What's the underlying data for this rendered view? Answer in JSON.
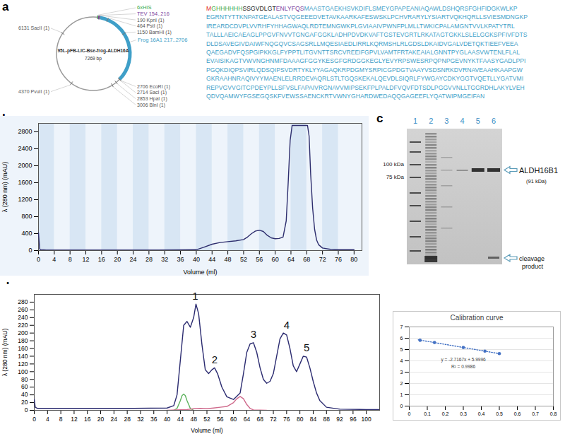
{
  "panel_labels": [
    "a",
    "b",
    "c",
    "d"
  ],
  "plasmid": {
    "name": "95L-pFB-LIC-Bse-frog-ALDH16A",
    "length": 7269,
    "length_label": "7269 bp",
    "features": [
      {
        "text": "6xHIS",
        "start": 124,
        "end": 153,
        "color": "#3daa4a"
      },
      {
        "text": "TEV 154..216",
        "start": 154,
        "end": 216,
        "color": "#7b3f9e"
      },
      {
        "text": "Frog 16A1 217..2706",
        "start": 217,
        "end": 2706,
        "color": "#3f9fc8"
      }
    ],
    "sites": [
      {
        "text": "190 KpnI (1)",
        "position": 190
      },
      {
        "text": "464 PstI (1)",
        "position": 464
      },
      {
        "text": "1150 BamHI (1)",
        "position": 1150
      },
      {
        "text": "2706 EcoRI (1)",
        "position": 2706
      },
      {
        "text": "2714 SacI (1)",
        "position": 2714
      },
      {
        "text": "2853 HpaI (1)",
        "position": 2853
      },
      {
        "text": "3006 BlnI (1)",
        "position": 3006
      },
      {
        "text": "4370 PvuII (1)",
        "position": 4370
      },
      {
        "text": "6131 SacII (1)",
        "position": 6131
      }
    ]
  },
  "sequence": {
    "lines": [
      [
        {
          "text": "M",
          "color": "#e0262b"
        },
        {
          "text": "GHHHHHH",
          "color": "#3daa4a"
        },
        {
          "text": "SSGVDLGT",
          "color": "#111111"
        },
        {
          "text": "ENLYFQS",
          "color": "#7b3f9e"
        },
        {
          "text": "MAASTGAEKHSVKDIFLSMEYGPAPEANIAQAWLDSHQRSFGHFIDGKWLKP",
          "color": "#3f9fc8"
        }
      ],
      [
        {
          "text": "EGRNTYTTKNPATGEALASTVQGEEEDVETAVKAARKAFESWSKLPCHVRARYLYSIARTVQKHQRLLSVIESMDNGKP",
          "color": "#3f9fc8"
        }
      ],
      [
        {
          "text": "IREARDCDVPLVVRHFYHHAGWAQLRDTEMNGWKPLGVIAAIVPWNFPLMLLTWKICPALAMGNTVVLKPATYTRL",
          "color": "#3f9fc8"
        }
      ],
      [
        {
          "text": "TALLLAEICAEAGLPPGVFNVVTGNGAFGGKLADHPDVDKVAFTGSTEVGRTLRKATAGTGKKLSLELGGKSPFIVFDTS",
          "color": "#3f9fc8"
        }
      ],
      [
        {
          "text": "DLDSAVEGIVDAIWFNQGQVCSAGSRLLMQESIAEDLIRRLKQRMSHLRLGDSLDKAIDVGALVDETQKTIEEFVEEA",
          "color": "#3f9fc8"
        }
      ],
      [
        {
          "text": "QAEGADVFQSPGIPKKGLFYPPTLITGVNTTSRCVREEIFGPVLVAMTFRTAKEAIALGNNTPYGLAASVWTENLFLAL",
          "color": "#3f9fc8"
        }
      ],
      [
        {
          "text": "EVAISIKAGTVWVNGHNMFDAAAGFGGYKESGFGRDGGKEGLYEVYRPSWESRPQPNPGEVNYKTFAASYGADLPPI",
          "color": "#3f9fc8"
        }
      ],
      [
        {
          "text": "PGQKDIQPSVIRLQDSQIPSVDRTYKLYYAGAQKRPDGMYSRPICGPDGTVAAYVSDSNRKDVRNAVEAAHKAAPGW",
          "color": "#3f9fc8"
        }
      ],
      [
        {
          "text": "GKRAAHNRAQIVYYMAENLELRRDEVAQRLSTLTGQSKEKALQEVDLSIQRLFYWGAYCDKYGGTVQETLLYGATVMI",
          "color": "#3f9fc8"
        }
      ],
      [
        {
          "text": "REPVGVVGITCPDEYPLLSFVSLFAPAIVRGNAVVMIPSEKFPLPALDFVQVFDTSDLPGGVVNLLTGGRDHLAKYLVEH",
          "color": "#3f9fc8"
        }
      ],
      [
        {
          "text": "QDVQAMWYFGSEGQSKFVEWSSAENCKRTVWNYGHARDWEDAQQGAGEEFLYQATWIPMGEIFAN",
          "color": "#3f9fc8"
        }
      ]
    ]
  },
  "gel": {
    "lanes": [
      "1",
      "2",
      "3",
      "4",
      "5",
      "6"
    ],
    "markers": [
      "100 kDa",
      "75 kDa"
    ],
    "band_label": [
      "ALDH16B1",
      "(91 kDa)"
    ],
    "cleavage_label": [
      "cleavage",
      "product"
    ]
  },
  "chart_data": [
    {
      "type": "line",
      "x_label": "Volume (ml)",
      "y_label": "λ (280 nm) (mAU)",
      "xlim": [
        0,
        82
      ],
      "xticks": [
        0,
        4,
        8,
        12,
        16,
        20,
        24,
        28,
        32,
        36,
        40,
        44,
        48,
        52,
        56,
        60,
        64,
        68,
        72,
        76,
        80
      ],
      "ylim": [
        0,
        3000
      ],
      "yticks": [
        0,
        400,
        800,
        1200,
        1600,
        2000,
        2400,
        2800
      ],
      "grid": false,
      "series": [
        {
          "color": "#2e2e6e",
          "x": [
            0,
            0.3,
            0.6,
            2,
            10,
            20,
            30,
            40,
            42,
            44,
            46,
            48,
            50,
            52,
            53,
            54,
            55,
            56,
            57,
            58,
            59,
            60,
            61,
            62,
            62.8,
            63.3,
            63.8,
            64.3,
            68.2,
            68.6,
            69,
            69.5,
            70,
            70.5,
            71,
            72,
            74,
            76,
            80
          ],
          "values": [
            420,
            40,
            20,
            15,
            15,
            15,
            15,
            20,
            80,
            150,
            190,
            210,
            230,
            260,
            320,
            400,
            460,
            480,
            450,
            360,
            300,
            280,
            285,
            320,
            700,
            1600,
            2600,
            2950,
            2950,
            2700,
            1800,
            1000,
            500,
            250,
            140,
            60,
            30,
            20,
            20
          ]
        }
      ]
    },
    {
      "type": "line",
      "x_label": "Volume (ml)",
      "y_label": "λ (280 nm) (mAU)",
      "xlim": [
        0,
        104
      ],
      "xticks": [
        0,
        4,
        8,
        12,
        16,
        20,
        24,
        28,
        32,
        36,
        40,
        44,
        48,
        52,
        56,
        60,
        64,
        68,
        72,
        76,
        80,
        84,
        88,
        92,
        96,
        100
      ],
      "ylim": [
        0,
        300
      ],
      "yticks": [
        0,
        20,
        40,
        60,
        80,
        100,
        120,
        140,
        160,
        180,
        200,
        220,
        240,
        260,
        280
      ],
      "grid": false,
      "series": [
        {
          "color": "#2b2b70",
          "x": [
            0,
            0.3,
            1,
            10,
            20,
            30,
            40,
            42,
            43,
            44,
            45,
            46,
            47,
            48,
            48.7,
            49.5,
            50.5,
            51.5,
            52.5,
            53.5,
            54.3,
            55.2,
            56.5,
            58,
            60,
            62,
            63,
            64,
            65,
            66,
            67,
            68,
            69,
            70,
            71,
            72,
            73,
            74,
            75,
            76,
            77,
            78,
            79,
            80,
            81,
            82,
            83,
            84,
            85,
            86,
            88,
            92,
            100,
            104
          ],
          "values": [
            28,
            8,
            5,
            5,
            5,
            5,
            6,
            12,
            40,
            130,
            220,
            230,
            215,
            240,
            275,
            250,
            170,
            105,
            95,
            105,
            110,
            95,
            60,
            35,
            28,
            45,
            95,
            150,
            172,
            175,
            150,
            110,
            80,
            70,
            75,
            95,
            140,
            185,
            200,
            195,
            160,
            115,
            100,
            120,
            140,
            138,
            110,
            75,
            45,
            25,
            8,
            3,
            2,
            2
          ]
        },
        {
          "color": "#5fb35f",
          "x": [
            42,
            43,
            44,
            44.5,
            45,
            45.5,
            46,
            47,
            48
          ],
          "values": [
            0,
            5,
            25,
            38,
            42,
            38,
            25,
            5,
            0
          ]
        },
        {
          "color": "#cf6a8c",
          "x": [
            40,
            46,
            48,
            50,
            52,
            54,
            56,
            58,
            60,
            61,
            62,
            63,
            64,
            65,
            66,
            70
          ],
          "values": [
            0,
            2,
            4,
            5,
            4,
            6,
            8,
            10,
            20,
            30,
            36,
            30,
            15,
            5,
            1,
            0
          ]
        }
      ],
      "annotations": [
        {
          "text": "1",
          "x": 48.5,
          "y": 285
        },
        {
          "text": "2",
          "x": 54.3,
          "y": 120
        },
        {
          "text": "3",
          "x": 66,
          "y": 185
        },
        {
          "text": "4",
          "x": 76,
          "y": 210
        },
        {
          "text": "5",
          "x": 82,
          "y": 150
        }
      ]
    },
    {
      "type": "scatter",
      "title": "Calibration curve",
      "xlim": [
        0,
        0.8
      ],
      "xticks": [
        0,
        0.1,
        0.2,
        0.3,
        0.4,
        0.5,
        0.6,
        0.7,
        0.8
      ],
      "ylim": [
        0,
        7
      ],
      "yticks": [
        0,
        1,
        2,
        3,
        4,
        5,
        6,
        7
      ],
      "grid": true,
      "series": [
        {
          "type": "line",
          "line_style": "dotted",
          "color": "#4472c4",
          "x": [
            0.05,
            0.5
          ],
          "values": [
            5.86,
            4.64
          ]
        },
        {
          "type": "scatter",
          "marker": "circle",
          "color": "#4472c4",
          "x": [
            0.06,
            0.14,
            0.3,
            0.42,
            0.5
          ],
          "values": [
            5.82,
            5.62,
            5.18,
            4.86,
            4.64
          ]
        }
      ],
      "annotations": [
        {
          "text": "y = -2.7167x + 5.9996",
          "x": 0.3,
          "y": 4.1
        },
        {
          "text": "R² = 0.9986",
          "x": 0.3,
          "y": 3.5
        }
      ]
    }
  ]
}
